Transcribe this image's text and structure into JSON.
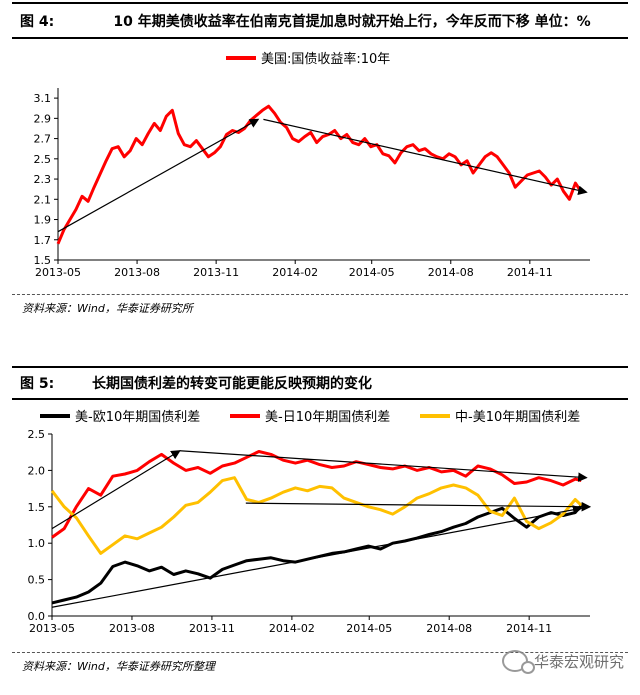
{
  "figure1": {
    "number": "图 4:",
    "title": "10 年期美债收益率在伯南克首提加息时就开始上行，今年反而下移  单位：%",
    "source": "资料来源：Wind，华泰证券研究所"
  },
  "figure2": {
    "number": "图 5:",
    "title": "长期国债利差的转变可能更能反映预期的变化",
    "source": "资料来源：Wind，华泰证券研究所整理"
  },
  "watermark": {
    "text": "华泰宏观研究"
  },
  "chart_data": [
    {
      "type": "line",
      "title": "",
      "xlabel": "",
      "ylabel": "",
      "x_ticks": [
        "2013-05",
        "2013-08",
        "2013-11",
        "2014-02",
        "2014-05",
        "2014-08",
        "2014-11"
      ],
      "y_ticks": [
        "1.5",
        "1.7",
        "1.9",
        "2.1",
        "2.3",
        "2.5",
        "2.7",
        "2.9",
        "3.1"
      ],
      "ylim": [
        1.5,
        3.2
      ],
      "grid": false,
      "legend_position": "top-center",
      "x_range": [
        "2013-05-01",
        "2015-01-10"
      ],
      "series": [
        {
          "name": "美国:国债收益率:10年",
          "color": "#ff0000",
          "x": [
            "2013-05-01",
            "2013-05-08",
            "2013-05-15",
            "2013-05-22",
            "2013-05-29",
            "2013-06-05",
            "2013-06-12",
            "2013-06-19",
            "2013-06-26",
            "2013-07-03",
            "2013-07-10",
            "2013-07-17",
            "2013-07-24",
            "2013-07-31",
            "2013-08-07",
            "2013-08-14",
            "2013-08-21",
            "2013-08-28",
            "2013-09-04",
            "2013-09-11",
            "2013-09-18",
            "2013-09-25",
            "2013-10-02",
            "2013-10-09",
            "2013-10-16",
            "2013-10-23",
            "2013-10-30",
            "2013-11-06",
            "2013-11-13",
            "2013-11-20",
            "2013-11-27",
            "2013-12-04",
            "2013-12-11",
            "2013-12-18",
            "2013-12-25",
            "2014-01-01",
            "2014-01-08",
            "2014-01-15",
            "2014-01-22",
            "2014-01-29",
            "2014-02-05",
            "2014-02-12",
            "2014-02-19",
            "2014-02-26",
            "2014-03-05",
            "2014-03-12",
            "2014-03-19",
            "2014-03-26",
            "2014-04-02",
            "2014-04-09",
            "2014-04-16",
            "2014-04-23",
            "2014-04-30",
            "2014-05-07",
            "2014-05-14",
            "2014-05-21",
            "2014-05-28",
            "2014-06-04",
            "2014-06-11",
            "2014-06-18",
            "2014-06-25",
            "2014-07-02",
            "2014-07-09",
            "2014-07-16",
            "2014-07-23",
            "2014-07-30",
            "2014-08-06",
            "2014-08-13",
            "2014-08-20",
            "2014-08-27",
            "2014-09-03",
            "2014-09-10",
            "2014-09-17",
            "2014-09-24",
            "2014-10-01",
            "2014-10-08",
            "2014-10-15",
            "2014-10-22",
            "2014-10-29",
            "2014-11-05",
            "2014-11-12",
            "2014-11-19",
            "2014-11-26",
            "2014-12-03",
            "2014-12-10",
            "2014-12-17",
            "2014-12-24",
            "2014-12-31"
          ],
          "values": [
            1.66,
            1.8,
            1.9,
            2.0,
            2.13,
            2.08,
            2.22,
            2.35,
            2.48,
            2.6,
            2.62,
            2.52,
            2.58,
            2.7,
            2.64,
            2.75,
            2.85,
            2.78,
            2.92,
            2.98,
            2.75,
            2.64,
            2.62,
            2.68,
            2.6,
            2.52,
            2.56,
            2.62,
            2.74,
            2.78,
            2.76,
            2.8,
            2.88,
            2.93,
            2.98,
            3.02,
            2.95,
            2.86,
            2.81,
            2.7,
            2.67,
            2.72,
            2.76,
            2.66,
            2.72,
            2.74,
            2.78,
            2.7,
            2.74,
            2.66,
            2.64,
            2.7,
            2.62,
            2.64,
            2.55,
            2.53,
            2.46,
            2.56,
            2.62,
            2.64,
            2.58,
            2.6,
            2.55,
            2.52,
            2.5,
            2.55,
            2.52,
            2.44,
            2.48,
            2.36,
            2.44,
            2.52,
            2.56,
            2.52,
            2.44,
            2.36,
            2.22,
            2.28,
            2.34,
            2.36,
            2.38,
            2.32,
            2.24,
            2.3,
            2.18,
            2.1,
            2.26,
            2.17
          ]
        }
      ],
      "annotations": [
        {
          "type": "arrow",
          "from": [
            "2013-05-01",
            1.78
          ],
          "to": [
            "2013-12-20",
            2.89
          ]
        },
        {
          "type": "arrow",
          "from": [
            "2013-12-26",
            2.89
          ],
          "to": [
            "2015-01-06",
            2.17
          ]
        }
      ]
    },
    {
      "type": "line",
      "title": "",
      "xlabel": "",
      "ylabel": "",
      "x_ticks": [
        "2013-05",
        "2013-08",
        "2013-11",
        "2014-02",
        "2014-05",
        "2014-08",
        "2014-11"
      ],
      "y_ticks": [
        "0.0",
        "0.5",
        "1.0",
        "1.5",
        "2.0",
        "2.5"
      ],
      "ylim": [
        0,
        2.5
      ],
      "grid": false,
      "legend_position": "top",
      "x_range": [
        "2013-05-01",
        "2015-01-10"
      ],
      "series": [
        {
          "name": "美-欧10年期国债利差",
          "color": "#000000",
          "x": [
            "2013-05-01",
            "2013-05-15",
            "2013-05-29",
            "2013-06-12",
            "2013-06-26",
            "2013-07-10",
            "2013-07-24",
            "2013-08-07",
            "2013-08-21",
            "2013-09-04",
            "2013-09-18",
            "2013-10-02",
            "2013-10-16",
            "2013-10-30",
            "2013-11-13",
            "2013-11-27",
            "2013-12-11",
            "2013-12-25",
            "2014-01-08",
            "2014-01-22",
            "2014-02-05",
            "2014-02-19",
            "2014-03-05",
            "2014-03-19",
            "2014-04-02",
            "2014-04-16",
            "2014-04-30",
            "2014-05-14",
            "2014-05-28",
            "2014-06-11",
            "2014-06-25",
            "2014-07-09",
            "2014-07-23",
            "2014-08-06",
            "2014-08-20",
            "2014-09-03",
            "2014-09-17",
            "2014-10-01",
            "2014-10-15",
            "2014-10-29",
            "2014-11-12",
            "2014-11-26",
            "2014-12-10",
            "2014-12-24",
            "2014-12-31"
          ],
          "values": [
            0.18,
            0.22,
            0.26,
            0.33,
            0.45,
            0.68,
            0.74,
            0.69,
            0.62,
            0.67,
            0.57,
            0.62,
            0.58,
            0.52,
            0.64,
            0.7,
            0.76,
            0.78,
            0.8,
            0.76,
            0.74,
            0.78,
            0.82,
            0.86,
            0.88,
            0.92,
            0.96,
            0.92,
            1.0,
            1.03,
            1.07,
            1.12,
            1.16,
            1.22,
            1.27,
            1.36,
            1.42,
            1.48,
            1.34,
            1.22,
            1.36,
            1.42,
            1.38,
            1.42,
            1.52
          ]
        },
        {
          "name": "美-日10年期国债利差",
          "color": "#ff0000",
          "x": [
            "2013-05-01",
            "2013-05-15",
            "2013-05-29",
            "2013-06-12",
            "2013-06-26",
            "2013-07-10",
            "2013-07-24",
            "2013-08-07",
            "2013-08-21",
            "2013-09-04",
            "2013-09-18",
            "2013-10-02",
            "2013-10-16",
            "2013-10-30",
            "2013-11-13",
            "2013-11-27",
            "2013-12-11",
            "2013-12-25",
            "2014-01-08",
            "2014-01-22",
            "2014-02-05",
            "2014-02-19",
            "2014-03-05",
            "2014-03-19",
            "2014-04-02",
            "2014-04-16",
            "2014-04-30",
            "2014-05-14",
            "2014-05-28",
            "2014-06-11",
            "2014-06-25",
            "2014-07-09",
            "2014-07-23",
            "2014-08-06",
            "2014-08-20",
            "2014-09-03",
            "2014-09-17",
            "2014-10-01",
            "2014-10-15",
            "2014-10-29",
            "2014-11-12",
            "2014-11-26",
            "2014-12-10",
            "2014-12-24",
            "2014-12-31"
          ],
          "values": [
            1.08,
            1.2,
            1.5,
            1.75,
            1.66,
            1.92,
            1.95,
            2.0,
            2.12,
            2.22,
            2.1,
            2.0,
            2.04,
            1.96,
            2.06,
            2.1,
            2.18,
            2.26,
            2.22,
            2.14,
            2.1,
            2.14,
            2.08,
            2.04,
            2.06,
            2.12,
            2.08,
            2.04,
            2.02,
            2.06,
            2.0,
            2.04,
            1.98,
            2.0,
            1.92,
            2.06,
            2.02,
            1.94,
            1.82,
            1.84,
            1.9,
            1.86,
            1.8,
            1.88,
            1.86
          ]
        },
        {
          "name": "中-美10年期国债利差",
          "color": "#ffc000",
          "x": [
            "2013-05-01",
            "2013-05-15",
            "2013-05-29",
            "2013-06-12",
            "2013-06-26",
            "2013-07-10",
            "2013-07-24",
            "2013-08-07",
            "2013-08-21",
            "2013-09-04",
            "2013-09-18",
            "2013-10-02",
            "2013-10-16",
            "2013-10-30",
            "2013-11-13",
            "2013-11-27",
            "2013-12-11",
            "2013-12-25",
            "2014-01-08",
            "2014-01-22",
            "2014-02-05",
            "2014-02-19",
            "2014-03-05",
            "2014-03-19",
            "2014-04-02",
            "2014-04-16",
            "2014-04-30",
            "2014-05-14",
            "2014-05-28",
            "2014-06-11",
            "2014-06-25",
            "2014-07-09",
            "2014-07-23",
            "2014-08-06",
            "2014-08-20",
            "2014-09-03",
            "2014-09-17",
            "2014-10-01",
            "2014-10-15",
            "2014-10-29",
            "2014-11-12",
            "2014-11-26",
            "2014-12-10",
            "2014-12-24",
            "2014-12-31"
          ],
          "values": [
            1.72,
            1.5,
            1.35,
            1.1,
            0.86,
            0.98,
            1.1,
            1.06,
            1.14,
            1.22,
            1.36,
            1.52,
            1.56,
            1.7,
            1.86,
            1.9,
            1.6,
            1.56,
            1.62,
            1.7,
            1.76,
            1.72,
            1.78,
            1.76,
            1.62,
            1.56,
            1.5,
            1.46,
            1.4,
            1.5,
            1.62,
            1.68,
            1.76,
            1.8,
            1.76,
            1.66,
            1.44,
            1.38,
            1.62,
            1.3,
            1.2,
            1.28,
            1.4,
            1.6,
            1.52
          ]
        }
      ],
      "annotations": [
        {
          "type": "arrow",
          "from": [
            "2013-05-01",
            0.12
          ],
          "to": [
            "2014-12-31",
            1.48
          ]
        },
        {
          "type": "arrow",
          "from": [
            "2013-05-01",
            1.2
          ],
          "to": [
            "2013-09-25",
            2.27
          ]
        },
        {
          "type": "arrow",
          "from": [
            "2013-09-25",
            2.27
          ],
          "to": [
            "2015-01-06",
            1.9
          ]
        },
        {
          "type": "arrow",
          "from": [
            "2013-12-10",
            1.55
          ],
          "to": [
            "2015-01-10",
            1.5
          ]
        }
      ]
    }
  ]
}
